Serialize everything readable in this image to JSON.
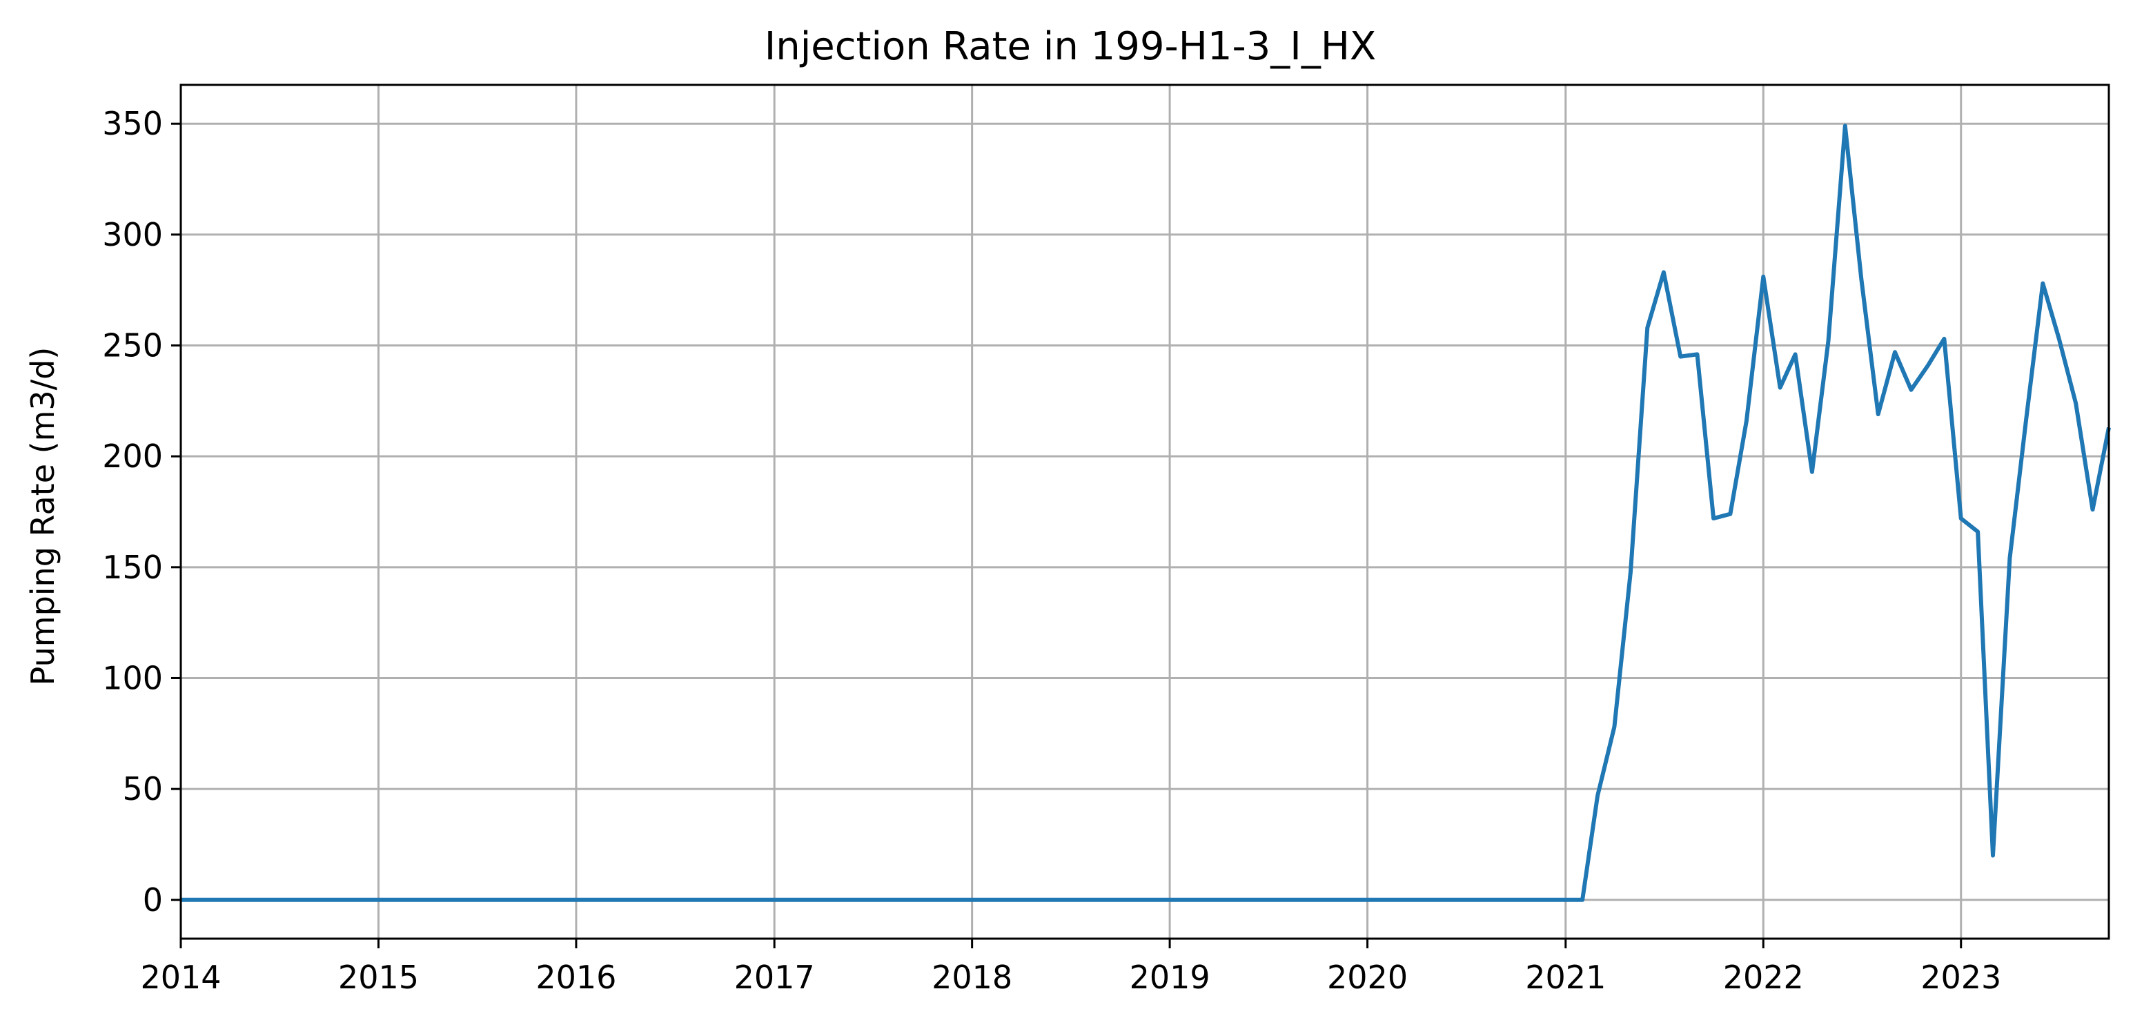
{
  "chart_data": {
    "type": "line",
    "title": "Injection Rate in 199-H1-3_I_HX",
    "xlabel": "",
    "ylabel": "Pumping Rate (m3/d)",
    "xlim": [
      "2014-01-01",
      "2023-10-01"
    ],
    "ylim": [
      -17.5,
      367.5
    ],
    "grid": true,
    "legend": "none",
    "x_ticks": [
      "2014",
      "2015",
      "2016",
      "2017",
      "2018",
      "2019",
      "2020",
      "2021",
      "2022",
      "2023"
    ],
    "y_ticks": [
      "0",
      "50",
      "100",
      "150",
      "200",
      "250",
      "300",
      "350"
    ],
    "colors": {
      "series": "#1f77b4"
    },
    "series": [
      {
        "x": [
          "2014-01-01",
          "2021-02-01",
          "2021-03-01",
          "2021-04-01",
          "2021-05-01",
          "2021-06-01",
          "2021-07-01",
          "2021-08-01",
          "2021-09-01",
          "2021-10-01",
          "2021-11-01",
          "2021-12-01",
          "2022-01-01",
          "2022-02-01",
          "2022-03-01",
          "2022-04-01",
          "2022-05-01",
          "2022-06-01",
          "2022-07-01",
          "2022-08-01",
          "2022-09-01",
          "2022-10-01",
          "2022-11-01",
          "2022-12-01",
          "2023-01-01",
          "2023-02-01",
          "2023-03-01",
          "2023-04-01",
          "2023-05-01",
          "2023-06-01",
          "2023-07-01",
          "2023-08-01",
          "2023-09-01",
          "2023-10-01"
        ],
        "y": [
          0,
          0,
          47,
          78,
          148,
          258,
          283,
          245,
          246,
          172,
          174,
          216,
          281,
          231,
          246,
          193,
          252,
          349,
          280,
          219,
          247,
          230,
          241,
          253,
          172,
          166,
          20,
          154,
          216,
          278,
          253,
          224,
          176,
          213
        ]
      }
    ]
  }
}
